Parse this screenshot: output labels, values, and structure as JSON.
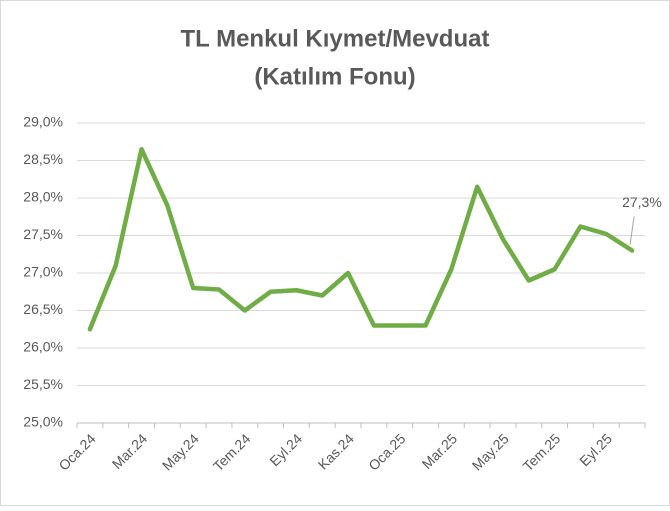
{
  "chart_data": {
    "type": "line",
    "title": [
      "TL Menkul Kıymet/Mevduat",
      "(Katılım Fonu)"
    ],
    "categories": [
      "Oca.24",
      null,
      "Mar.24",
      null,
      "May.24",
      null,
      "Tem.24",
      null,
      "Eyl.24",
      null,
      "Kas.24",
      null,
      "Oca.25",
      null,
      "Mar.25",
      null,
      "May.25",
      null,
      "Tem.25",
      null,
      "Eyl.25",
      null
    ],
    "series": [
      {
        "color": "#70ad47",
        "values": [
          26.25,
          27.1,
          28.65,
          27.9,
          26.8,
          26.78,
          26.5,
          26.75,
          26.77,
          26.7,
          27.0,
          26.3,
          26.3,
          26.3,
          27.05,
          28.15,
          27.45,
          26.9,
          27.05,
          27.62,
          27.52,
          27.3
        ],
        "value_labels": [
          null,
          null,
          null,
          null,
          null,
          null,
          null,
          null,
          null,
          null,
          null,
          null,
          null,
          null,
          null,
          null,
          null,
          null,
          null,
          null,
          null,
          "27,3%"
        ]
      }
    ],
    "ylim": [
      25,
      29
    ],
    "yticks": [
      {
        "value": 25,
        "label": "25,0%"
      },
      {
        "value": 25.5,
        "label": "25,5%"
      },
      {
        "value": 26,
        "label": "26,0%"
      },
      {
        "value": 26.5,
        "label": "26,5%"
      },
      {
        "value": 27,
        "label": "27,0%"
      },
      {
        "value": 27.5,
        "label": "27,5%"
      },
      {
        "value": 28,
        "label": "28,0%"
      },
      {
        "value": 28.5,
        "label": "28,5%"
      },
      {
        "value": 29,
        "label": "29,0%"
      }
    ],
    "grid": true
  }
}
